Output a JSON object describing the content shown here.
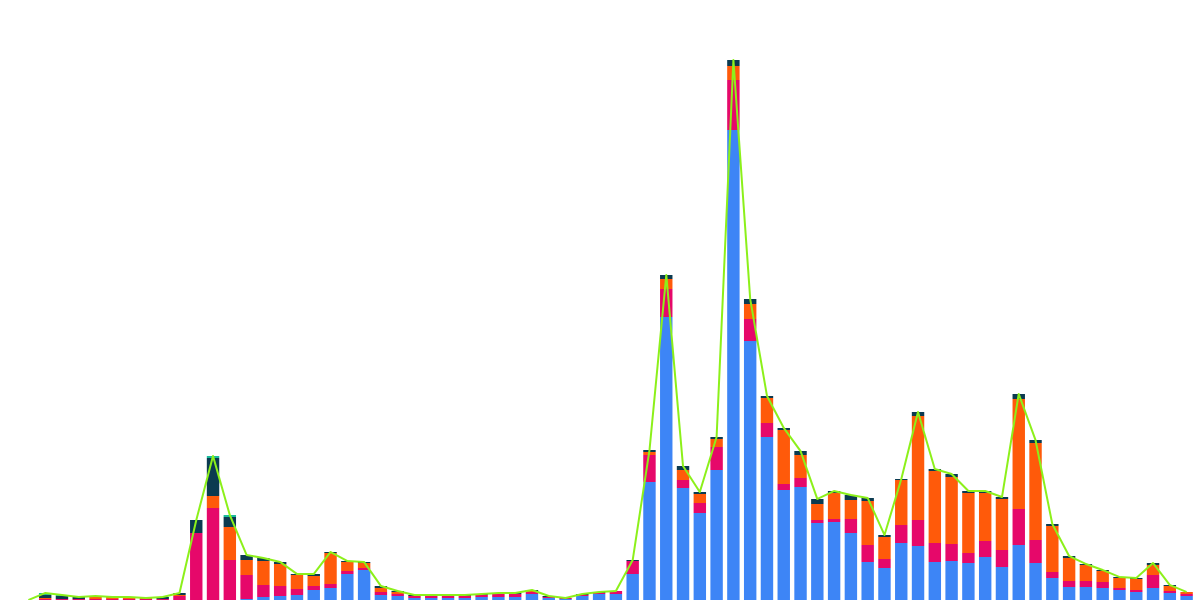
{
  "chart_data": {
    "type": "stacked-bar-line",
    "categories": [
      null,
      null,
      null,
      null,
      null,
      null,
      null,
      null,
      null,
      null,
      null,
      null,
      null,
      null,
      null,
      null,
      null,
      null,
      null,
      null,
      null,
      null,
      null,
      null,
      null,
      null,
      null,
      null,
      null,
      null,
      null,
      null,
      null,
      null,
      null,
      null,
      null,
      null,
      null,
      null,
      null,
      null,
      null,
      null,
      null,
      null,
      null,
      null,
      null,
      null,
      null,
      null,
      null,
      null,
      null,
      null,
      null,
      null,
      null,
      null,
      null,
      null,
      null,
      null,
      null,
      null,
      null,
      null,
      null,
      null
    ],
    "ylim": [
      0,
      540
    ],
    "series": [
      {
        "color": "#3d85f6",
        "values": [
          0,
          0,
          0,
          0,
          0,
          0,
          0,
          0,
          0,
          0,
          0,
          0,
          0,
          1,
          3,
          4,
          5,
          10,
          12,
          26,
          30,
          5,
          4,
          2,
          2,
          2,
          2,
          3,
          3,
          3,
          6,
          2,
          1,
          4,
          6,
          6,
          26,
          118,
          283,
          112,
          87,
          130,
          470,
          259,
          163,
          110,
          113,
          77,
          78,
          67,
          38,
          32,
          57,
          54,
          38,
          39,
          37,
          43,
          33,
          55,
          37,
          22,
          13,
          13,
          12,
          10,
          8,
          12,
          7,
          4
        ]
      },
      {
        "color": "#e6086a",
        "values": [
          0,
          1,
          1,
          1,
          1,
          1,
          1,
          1,
          1,
          4,
          67,
          92,
          40,
          24,
          12,
          10,
          6,
          4,
          4,
          3,
          2,
          3,
          2,
          2,
          2,
          2,
          2,
          2,
          3,
          3,
          2,
          1,
          1,
          1,
          1,
          3,
          13,
          27,
          28,
          8,
          10,
          23,
          50,
          22,
          14,
          6,
          9,
          3,
          3,
          14,
          17,
          9,
          18,
          26,
          19,
          17,
          10,
          16,
          17,
          36,
          23,
          6,
          6,
          6,
          6,
          2,
          2,
          13,
          2,
          2
        ]
      },
      {
        "color": "#ff5a0a",
        "values": [
          0,
          1,
          0,
          0,
          2,
          2,
          2,
          1,
          0,
          1,
          0,
          12,
          33,
          15,
          24,
          22,
          14,
          10,
          31,
          9,
          5,
          4,
          2,
          0,
          0,
          0,
          0,
          0,
          0,
          0,
          1,
          0,
          0,
          0,
          0,
          0,
          0,
          3,
          10,
          10,
          9,
          8,
          14,
          15,
          25,
          54,
          23,
          16,
          26,
          19,
          44,
          22,
          45,
          104,
          72,
          67,
          60,
          48,
          51,
          110,
          97,
          46,
          23,
          16,
          11,
          10,
          11,
          10,
          5,
          2
        ]
      },
      {
        "color": "#0b3a50",
        "values": [
          0,
          3,
          3,
          2,
          1,
          0,
          0,
          0,
          2,
          2,
          13,
          38,
          10,
          5,
          3,
          2,
          1,
          2,
          1,
          1,
          1,
          2,
          1,
          1,
          1,
          1,
          1,
          1,
          1,
          1,
          1,
          1,
          0,
          1,
          1,
          0,
          1,
          2,
          4,
          4,
          2,
          2,
          6,
          5,
          2,
          2,
          4,
          5,
          2,
          5,
          3,
          2,
          1,
          4,
          2,
          3,
          2,
          2,
          2,
          5,
          3,
          2,
          2,
          1,
          1,
          1,
          1,
          2,
          1,
          0
        ]
      },
      {
        "color": "#1abc9c",
        "values": [
          0,
          2,
          1,
          0,
          0,
          0,
          0,
          0,
          0,
          0,
          0,
          2,
          2,
          0,
          0,
          0,
          0,
          0,
          0,
          0,
          0,
          0,
          0,
          0,
          0,
          0,
          0,
          0,
          0,
          0,
          0,
          0,
          0,
          0,
          0,
          0,
          0,
          0,
          0,
          0,
          0,
          0,
          0,
          0,
          0,
          0,
          0,
          0,
          0,
          0,
          0,
          0,
          0,
          0,
          0,
          0,
          0,
          0,
          0,
          0,
          0,
          0,
          0,
          0,
          0,
          0,
          0,
          0,
          0,
          0
        ]
      }
    ],
    "line": {
      "color": "#8cf01a",
      "values": [
        0,
        7,
        5,
        3,
        4,
        3,
        3,
        2,
        3,
        7,
        80,
        144,
        85,
        45,
        42,
        38,
        26,
        26,
        48,
        39,
        38,
        14,
        9,
        5,
        5,
        5,
        5,
        6,
        7,
        7,
        10,
        4,
        2,
        6,
        8,
        9,
        40,
        150,
        325,
        134,
        108,
        163,
        540,
        301,
        204,
        172,
        149,
        101,
        109,
        105,
        102,
        65,
        121,
        188,
        131,
        126,
        109,
        109,
        103,
        206,
        160,
        76,
        44,
        36,
        30,
        23,
        22,
        37,
        15,
        8
      ]
    }
  }
}
